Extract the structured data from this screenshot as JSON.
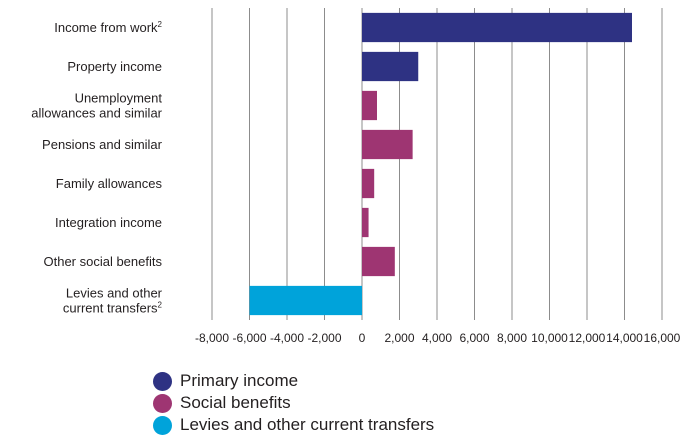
{
  "chart_data": {
    "type": "bar",
    "orientation": "horizontal",
    "categories": [
      {
        "text": "Income from work",
        "sup": "2"
      },
      {
        "text": "Property income",
        "sup": ""
      },
      {
        "text": "Unemployment\nallowances and similar",
        "sup": ""
      },
      {
        "text": "Pensions and similar",
        "sup": ""
      },
      {
        "text": "Family allowances",
        "sup": ""
      },
      {
        "text": "Integration income",
        "sup": ""
      },
      {
        "text": "Other social benefits",
        "sup": ""
      },
      {
        "text": "Levies and other\ncurrent transfers",
        "sup": "2"
      }
    ],
    "values": [
      14400,
      3000,
      800,
      2700,
      650,
      350,
      1750,
      -6000
    ],
    "group": [
      0,
      0,
      1,
      1,
      1,
      1,
      1,
      2
    ],
    "xlim": [
      -8000,
      16000
    ],
    "xticks": [
      -8000,
      -6000,
      -4000,
      -2000,
      0,
      2000,
      4000,
      6000,
      8000,
      10000,
      12000,
      14000,
      16000
    ],
    "xtick_labels": [
      "-8,000",
      "-6,000",
      "-4,000",
      "-2,000",
      "0",
      "2,000",
      "4,000",
      "6,000",
      "8,000",
      "10,000",
      "12,000",
      "14,000",
      "16,000"
    ],
    "grid": "vertical",
    "legend": [
      {
        "name": "Primary income",
        "color": "#2e3283"
      },
      {
        "name": "Social benefits",
        "color": "#9e3572"
      },
      {
        "name": "Levies and other current transfers",
        "color": "#00a3da"
      }
    ],
    "legend_position": "bottom"
  }
}
